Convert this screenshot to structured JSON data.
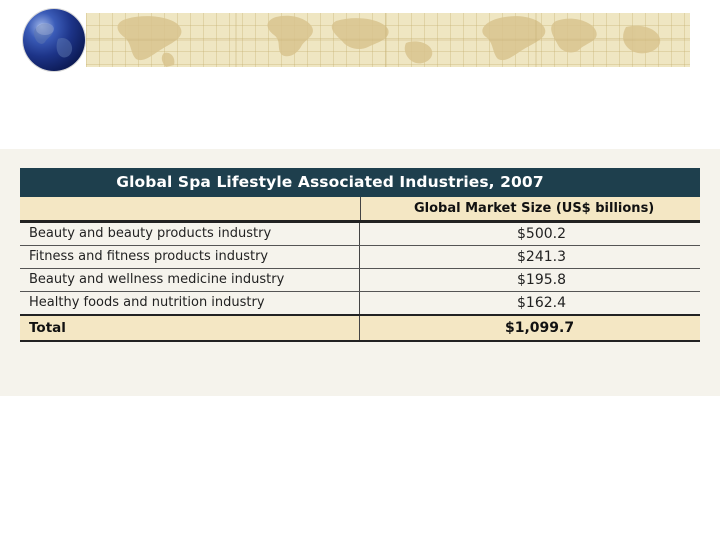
{
  "icons": {
    "globe": "globe-icon",
    "map": "world-map-icon"
  },
  "colors": {
    "title_bar": "#1e3f4d",
    "header_fill": "#f4e7c4",
    "map_band": "#efe6c2"
  },
  "table": {
    "title": "Global Spa Lifestyle Associated Industries, 2007",
    "column_header": "Global Market Size (US$ billions)",
    "rows": [
      {
        "label": "Beauty and beauty products industry",
        "value": "$500.2"
      },
      {
        "label": "Fitness and fitness products industry",
        "value": "$241.3"
      },
      {
        "label": "Beauty and wellness medicine industry",
        "value": "$195.8"
      },
      {
        "label": "Healthy foods and nutrition industry",
        "value": "$162.4"
      }
    ],
    "total": {
      "label": "Total",
      "value": "$1,099.7"
    }
  }
}
